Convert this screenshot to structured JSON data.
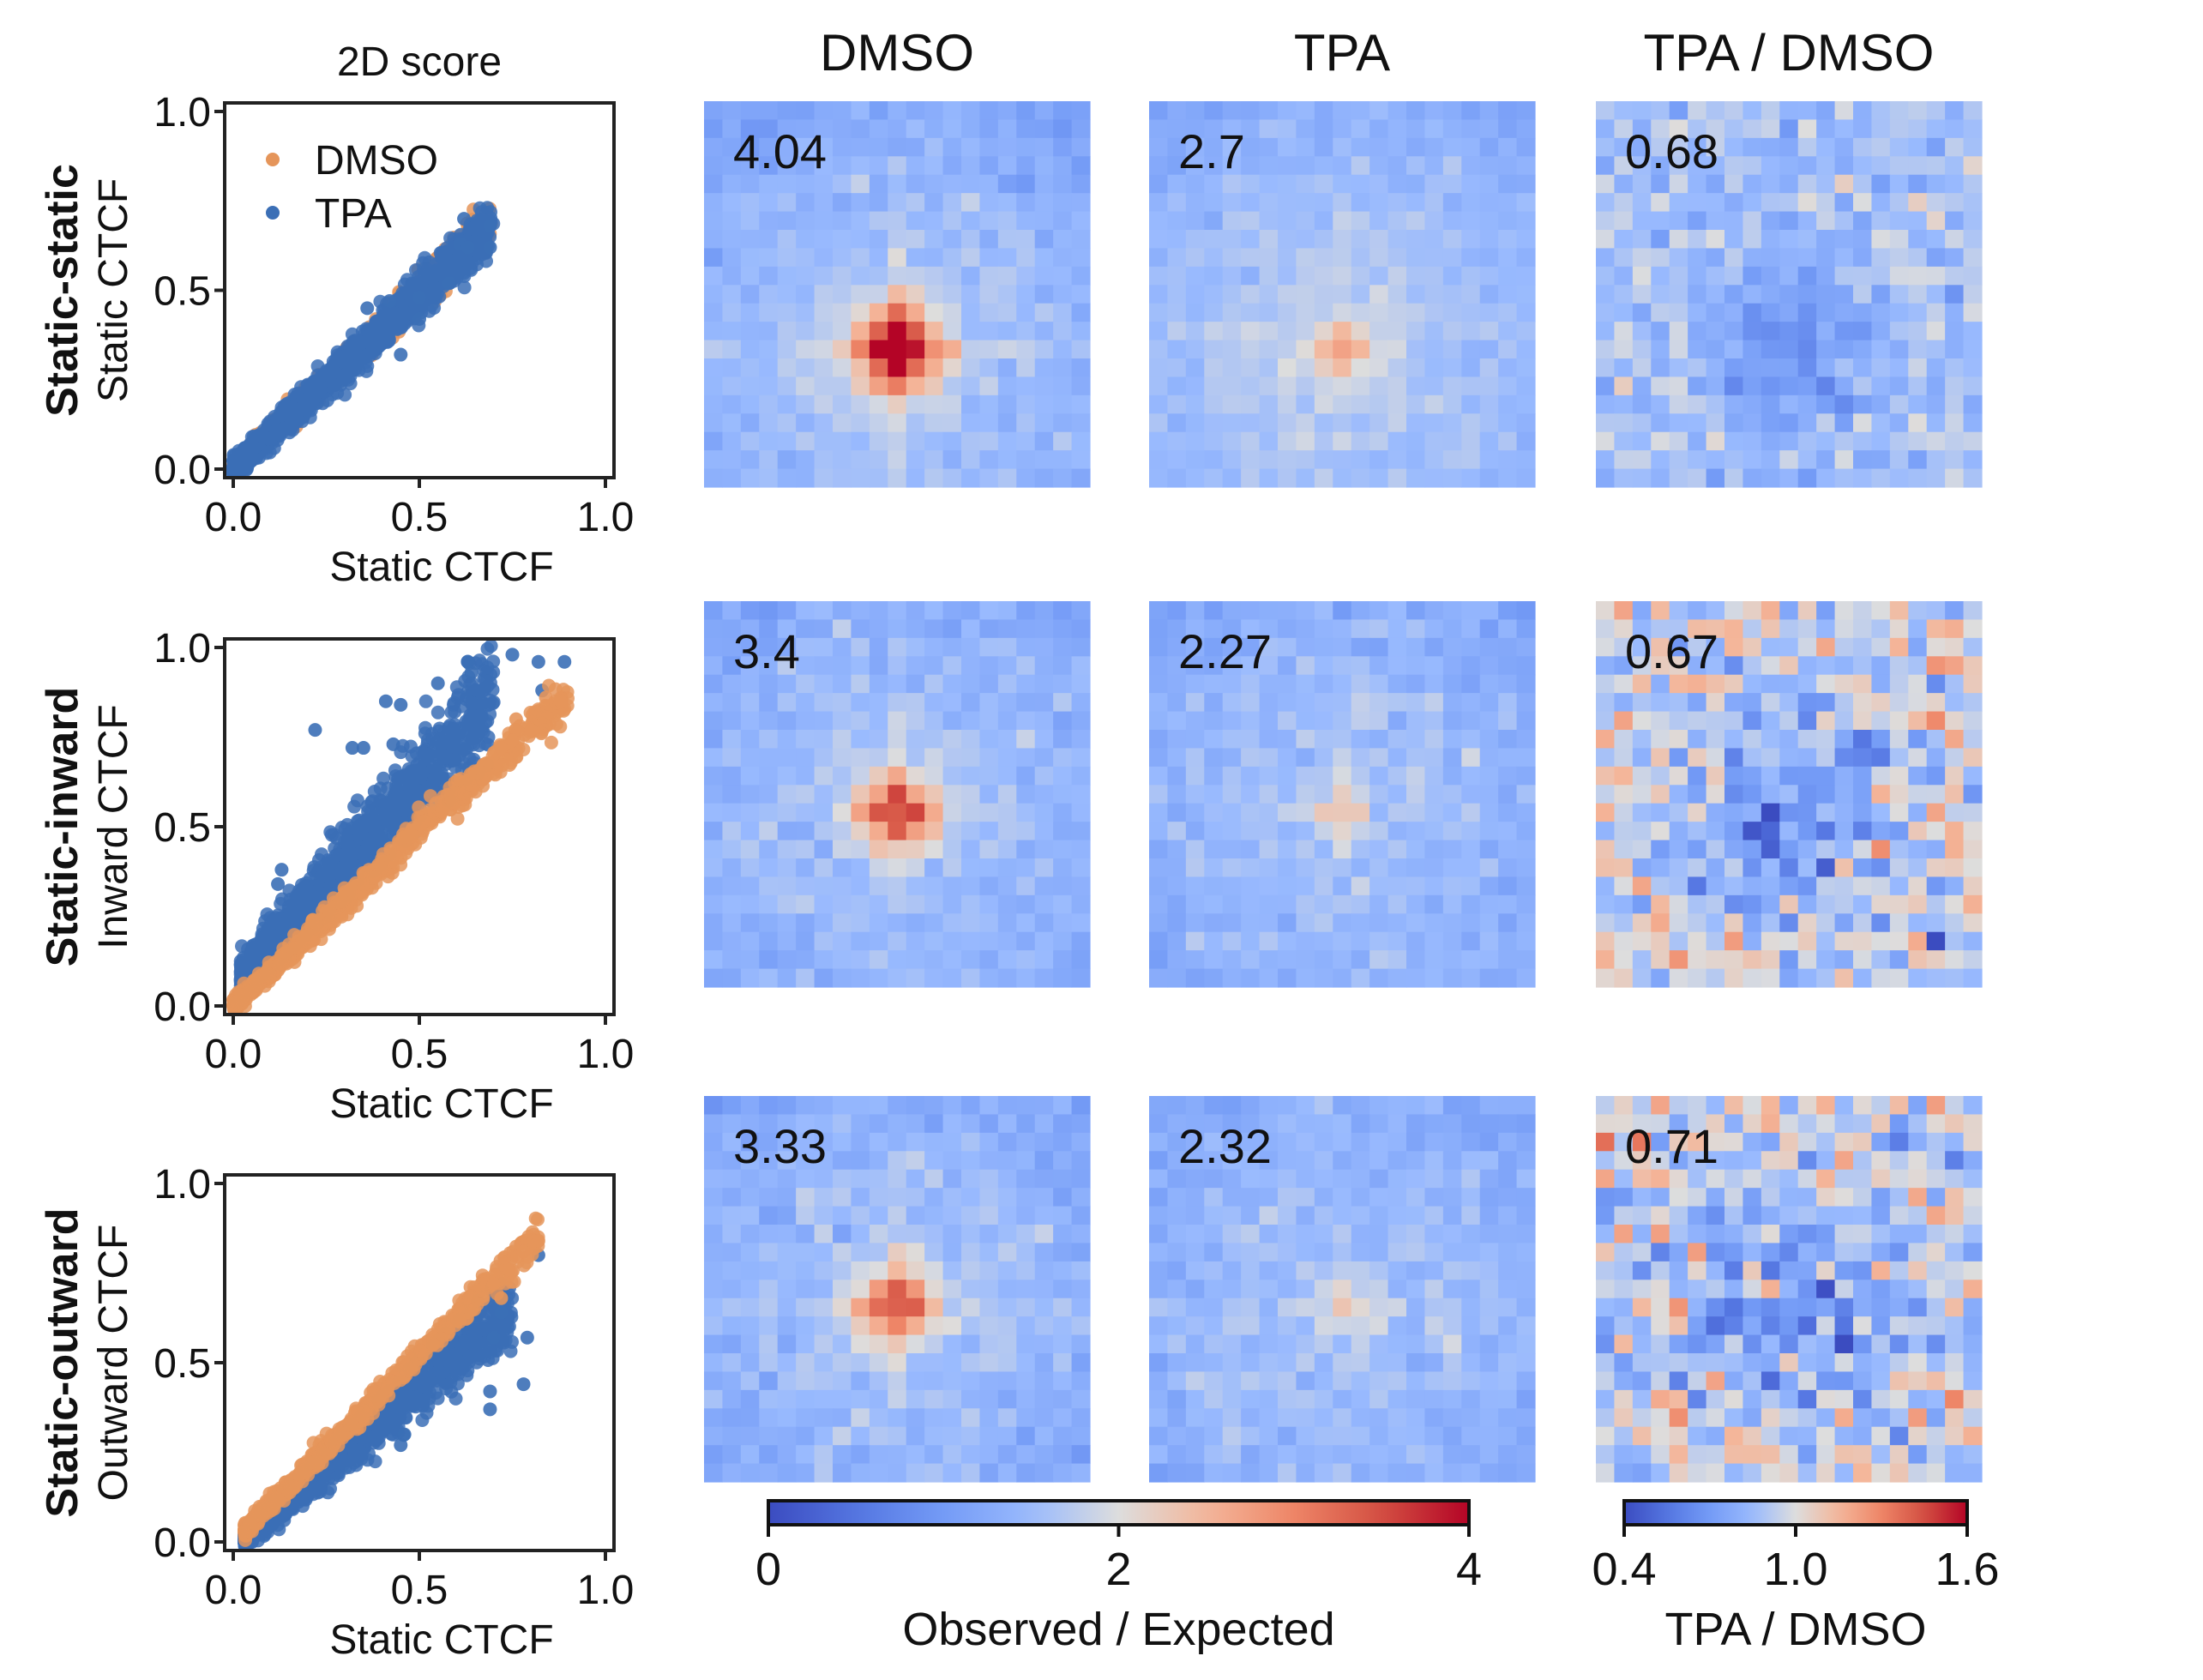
{
  "figure": {
    "scatter_column_title": "2D score",
    "heatmap_column_titles": [
      "DMSO",
      "TPA",
      "TPA / DMSO"
    ],
    "rows": [
      {
        "row_label": "Static-static",
        "y_axis_label": "Static CTCF",
        "x_axis_label": "Static CTCF"
      },
      {
        "row_label": "Static-inward",
        "y_axis_label": "Inward CTCF",
        "x_axis_label": "Static CTCF"
      },
      {
        "row_label": "Static-outward",
        "y_axis_label": "Outward CTCF",
        "x_axis_label": "Static CTCF"
      }
    ]
  },
  "chart_data": [
    {
      "type": "scatter",
      "panel": "Static-static 2D score",
      "title": "2D score",
      "xlabel": "Static CTCF",
      "ylabel": "Static CTCF",
      "row_label": "Static-static",
      "xlim": [
        0.0,
        1.0
      ],
      "ylim": [
        0.0,
        1.0
      ],
      "xticks": [
        "0.0",
        "0.5",
        "1.0"
      ],
      "yticks": [
        "0.0",
        "0.5",
        "1.0"
      ],
      "legend": {
        "position": "top-left",
        "entries": [
          "DMSO",
          "TPA"
        ]
      },
      "series": [
        {
          "name": "DMSO",
          "color": "#e5955a",
          "trend": {
            "slope": 1.0,
            "intercept": 0.0,
            "spread": 0.03,
            "x_range": [
              0.0,
              0.7
            ],
            "n": 600
          },
          "outliers": [
            [
              0.68,
              0.68
            ],
            [
              0.66,
              0.64
            ],
            [
              0.64,
              0.62
            ],
            [
              0.6,
              0.58
            ],
            [
              0.52,
              0.55
            ],
            [
              0.55,
              0.5
            ],
            [
              0.5,
              0.45
            ],
            [
              0.47,
              0.42
            ]
          ]
        },
        {
          "name": "TPA",
          "color": "#3b6fb6",
          "trend": {
            "slope": 0.98,
            "intercept": 0.0,
            "spread": 0.035,
            "x_range": [
              0.0,
              0.7
            ],
            "n": 1400
          },
          "outliers": [
            [
              0.62,
              0.7
            ],
            [
              0.69,
              0.68
            ],
            [
              0.69,
              0.62
            ],
            [
              0.61,
              0.63
            ],
            [
              0.63,
              0.62
            ],
            [
              0.58,
              0.52
            ],
            [
              0.5,
              0.48
            ],
            [
              0.42,
              0.47
            ],
            [
              0.36,
              0.45
            ],
            [
              0.5,
              0.42
            ],
            [
              0.45,
              0.32
            ]
          ]
        }
      ]
    },
    {
      "type": "scatter",
      "panel": "Static-inward 2D score",
      "xlabel": "Static CTCF",
      "ylabel": "Inward CTCF",
      "row_label": "Static-inward",
      "xlim": [
        0.0,
        1.0
      ],
      "ylim": [
        0.0,
        1.0
      ],
      "xticks": [
        "0.0",
        "0.5",
        "1.0"
      ],
      "yticks": [
        "0.0",
        "0.5",
        "1.0"
      ],
      "series": [
        {
          "name": "DMSO",
          "color": "#e5955a",
          "trend": {
            "slope": 0.97,
            "intercept": 0.0,
            "spread": 0.025,
            "x_range": [
              0.0,
              0.9
            ],
            "n": 700
          },
          "outliers": [
            [
              0.88,
              0.85
            ],
            [
              0.84,
              0.86
            ],
            [
              0.8,
              0.77
            ],
            [
              0.75,
              0.74
            ],
            [
              0.76,
              0.8
            ],
            [
              0.72,
              0.72
            ]
          ]
        },
        {
          "name": "TPA",
          "color": "#3b6fb6",
          "trend": {
            "slope": 1.15,
            "intercept": 0.05,
            "spread": 0.07,
            "x_range": [
              0.02,
              0.7
            ],
            "n": 1100
          },
          "outliers": [
            [
              0.75,
              0.98
            ],
            [
              0.82,
              0.96
            ],
            [
              0.89,
              0.96
            ],
            [
              0.63,
              0.96
            ],
            [
              0.64,
              0.93
            ],
            [
              0.55,
              0.9
            ],
            [
              0.83,
              0.88
            ],
            [
              0.41,
              0.85
            ],
            [
              0.45,
              0.84
            ],
            [
              0.22,
              0.77
            ],
            [
              0.35,
              0.72
            ],
            [
              0.32,
              0.72
            ],
            [
              0.43,
              0.73
            ],
            [
              0.13,
              0.38
            ],
            [
              0.12,
              0.34
            ]
          ]
        }
      ]
    },
    {
      "type": "scatter",
      "panel": "Static-outward 2D score",
      "xlabel": "Static CTCF",
      "ylabel": "Outward CTCF",
      "row_label": "Static-outward",
      "xlim": [
        0.0,
        1.0
      ],
      "ylim": [
        0.0,
        1.0
      ],
      "xticks": [
        "0.0",
        "0.5",
        "1.0"
      ],
      "yticks": [
        "0.0",
        "0.5",
        "1.0"
      ],
      "series": [
        {
          "name": "DMSO",
          "color": "#e5955a",
          "trend": {
            "slope": 1.05,
            "intercept": 0.0,
            "spread": 0.02,
            "x_range": [
              0.03,
              0.82
            ],
            "n": 700
          },
          "outliers": [
            [
              0.82,
              0.84
            ],
            [
              0.78,
              0.81
            ],
            [
              0.74,
              0.76
            ],
            [
              0.7,
              0.72
            ],
            [
              0.72,
              0.68
            ]
          ]
        },
        {
          "name": "TPA",
          "color": "#3b6fb6",
          "trend": {
            "slope": 0.88,
            "intercept": -0.01,
            "spread": 0.04,
            "x_range": [
              0.03,
              0.75
            ],
            "n": 1200
          },
          "outliers": [
            [
              0.82,
              0.8
            ],
            [
              0.72,
              0.72
            ],
            [
              0.72,
              0.64
            ],
            [
              0.7,
              0.57
            ],
            [
              0.79,
              0.57
            ],
            [
              0.78,
              0.44
            ],
            [
              0.69,
              0.42
            ],
            [
              0.69,
              0.37
            ],
            [
              0.46,
              0.3
            ],
            [
              0.45,
              0.27
            ]
          ]
        }
      ]
    },
    {
      "type": "heatmap",
      "panel": "Static-static DMSO",
      "grid_size": 21,
      "peak_label": "4.04",
      "colorbar": "obs_exp",
      "model": {
        "center": [
          10,
          13
        ],
        "peak": 4.04,
        "sigma": 1.6,
        "stripe_strength": 0.55,
        "stripe_decay": 4.5,
        "background": 1.65,
        "noise": 0.12,
        "seed": 11
      }
    },
    {
      "type": "heatmap",
      "panel": "Static-static TPA",
      "grid_size": 21,
      "peak_label": "2.7",
      "colorbar": "obs_exp",
      "model": {
        "center": [
          10,
          13
        ],
        "peak": 2.7,
        "sigma": 1.1,
        "stripe_strength": 0.18,
        "stripe_decay": 4.0,
        "background": 1.72,
        "noise": 0.1,
        "seed": 12
      }
    },
    {
      "type": "heatmap",
      "panel": "Static-static TPA / DMSO",
      "grid_size": 21,
      "peak_label": "0.68",
      "colorbar": "ratio",
      "model": {
        "center": [
          10,
          13
        ],
        "peak": 0.68,
        "sigma": 2.2,
        "stripe_strength": 0.0,
        "stripe_decay": 3.0,
        "background": 0.88,
        "noise": 0.07,
        "seed": 13
      }
    },
    {
      "type": "heatmap",
      "panel": "Static-inward DMSO",
      "grid_size": 21,
      "peak_label": "3.4",
      "colorbar": "obs_exp",
      "model": {
        "center": [
          10,
          11
        ],
        "peak": 3.4,
        "sigma": 1.5,
        "stripe_strength": 0.4,
        "stripe_decay": 3.5,
        "background": 1.6,
        "noise": 0.14,
        "seed": 21
      }
    },
    {
      "type": "heatmap",
      "panel": "Static-inward TPA",
      "grid_size": 21,
      "peak_label": "2.27",
      "colorbar": "obs_exp",
      "model": {
        "center": [
          10,
          11
        ],
        "peak": 2.27,
        "sigma": 1.0,
        "stripe_strength": 0.22,
        "stripe_decay": 3.5,
        "background": 1.6,
        "noise": 0.13,
        "seed": 22
      }
    },
    {
      "type": "heatmap",
      "panel": "Static-inward TPA / DMSO",
      "grid_size": 21,
      "peak_label": "0.67",
      "colorbar": "ratio",
      "model": {
        "center": [
          10,
          11
        ],
        "peak": 0.67,
        "sigma": 2.5,
        "stripe_strength": 0.0,
        "stripe_decay": 3.0,
        "background": 0.95,
        "noise": 0.13,
        "seed": 23
      }
    },
    {
      "type": "heatmap",
      "panel": "Static-outward DMSO",
      "grid_size": 21,
      "peak_label": "3.33",
      "colorbar": "obs_exp",
      "model": {
        "center": [
          10,
          11
        ],
        "peak": 3.33,
        "sigma": 1.4,
        "stripe_strength": 0.4,
        "stripe_decay": 4.0,
        "background": 1.6,
        "noise": 0.14,
        "seed": 31
      }
    },
    {
      "type": "heatmap",
      "panel": "Static-outward TPA",
      "grid_size": 21,
      "peak_label": "2.32",
      "colorbar": "obs_exp",
      "model": {
        "center": [
          10,
          11
        ],
        "peak": 2.32,
        "sigma": 1.0,
        "stripe_strength": 0.2,
        "stripe_decay": 4.0,
        "background": 1.6,
        "noise": 0.13,
        "seed": 32
      }
    },
    {
      "type": "heatmap",
      "panel": "Static-outward TPA / DMSO",
      "grid_size": 21,
      "peak_label": "0.71",
      "colorbar": "ratio",
      "model": {
        "center": [
          10,
          11
        ],
        "peak": 0.71,
        "sigma": 2.5,
        "stripe_strength": 0.0,
        "stripe_decay": 3.0,
        "background": 0.95,
        "noise": 0.15,
        "seed": 33
      }
    }
  ],
  "colorbars": {
    "obs_exp": {
      "label": "Observed / Expected",
      "range": [
        0,
        4
      ],
      "ticks": [
        "0",
        "2",
        "4"
      ],
      "tick_values": [
        0,
        2,
        4
      ],
      "colormap": "coolwarm"
    },
    "ratio": {
      "label": "TPA / DMSO",
      "range": [
        0.4,
        1.6
      ],
      "ticks": [
        "0.4",
        "1.0",
        "1.6"
      ],
      "tick_values": [
        0.4,
        1.0,
        1.6
      ],
      "colormap": "coolwarm"
    }
  },
  "colors": {
    "dmso": "#e5955a",
    "tpa": "#3b6fb6",
    "coolwarm_low": "#3b4cc0",
    "coolwarm_mid": "#dddddd",
    "coolwarm_high": "#b40426"
  }
}
